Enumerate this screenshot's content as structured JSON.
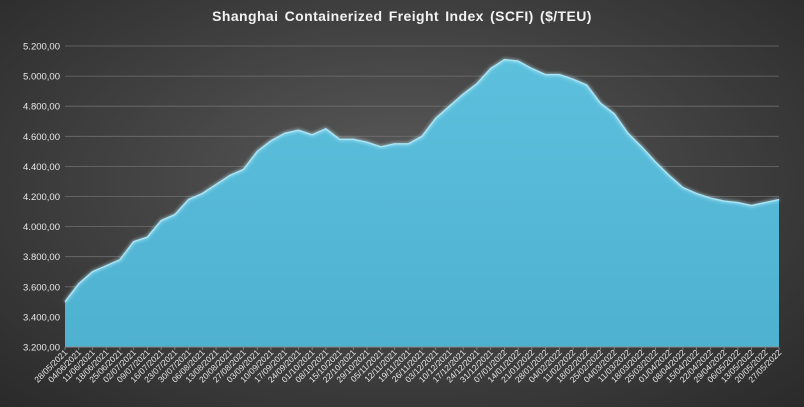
{
  "chart_data": {
    "type": "area",
    "title": "Shanghai Containerized Freight Index  (SCFI) ($/TEU)",
    "xlabel": "",
    "ylabel": "",
    "ylim": [
      3200,
      5200
    ],
    "yticks": [
      "3.200,00",
      "3.400,00",
      "3.600,00",
      "3.800,00",
      "4.000,00",
      "4.200,00",
      "4.400,00",
      "4.600,00",
      "4.800,00",
      "5.000,00",
      "5.200,00"
    ],
    "grid": true,
    "x": [
      "28/05/2021",
      "04/06/2021",
      "11/06/2021",
      "18/06/2021",
      "25/06/2021",
      "02/07/2021",
      "09/07/2021",
      "16/07/2021",
      "23/07/2021",
      "30/07/2021",
      "06/08/2021",
      "13/08/2021",
      "20/08/2021",
      "27/08/2021",
      "03/09/2021",
      "10/09/2021",
      "17/09/2021",
      "24/09/2021",
      "01/10/2021",
      "08/10/2021",
      "15/10/2021",
      "22/10/2021",
      "29/10/2021",
      "05/11/2021",
      "12/11/2021",
      "19/11/2021",
      "26/11/2021",
      "03/12/2021",
      "10/12/2021",
      "17/12/2021",
      "24/12/2021",
      "31/12/2021",
      "07/01/2022",
      "14/01/2022",
      "21/01/2022",
      "28/01/2022",
      "04/02/2022",
      "11/02/2022",
      "18/02/2022",
      "25/02/2022",
      "04/03/2022",
      "11/03/2022",
      "18/03/2022",
      "25/03/2022",
      "01/04/2022",
      "08/04/2022",
      "15/04/2022",
      "22/04/2022",
      "29/04/2022",
      "06/05/2022",
      "13/05/2022",
      "20/05/2022",
      "27/05/2022"
    ],
    "series": [
      {
        "color": "#55b8d6",
        "values": [
          3500,
          3620,
          3700,
          3740,
          3780,
          3900,
          3930,
          4040,
          4080,
          4180,
          4220,
          4280,
          4340,
          4380,
          4500,
          4570,
          4620,
          4640,
          4610,
          4650,
          4580,
          4580,
          4560,
          4530,
          4550,
          4550,
          4600,
          4720,
          4800,
          4880,
          4950,
          5050,
          5110,
          5100,
          5050,
          5010,
          5010,
          4980,
          4940,
          4820,
          4750,
          4620,
          4530,
          4430,
          4340,
          4260,
          4220,
          4190,
          4170,
          4160,
          4140,
          4160,
          4180
        ]
      }
    ]
  }
}
